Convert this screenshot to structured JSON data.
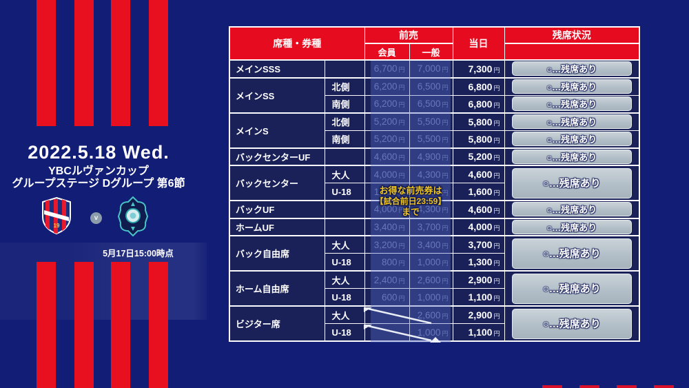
{
  "event": {
    "date": "2022.5.18 Wed.",
    "competition": "YBCルヴァンカップ",
    "stage": "グループステージ Dグループ 第6節",
    "versus_label": "v",
    "as_of": "5月17日15:00時点"
  },
  "icons": {
    "home_crest": "fc-tokyo-crest",
    "away_crest": "avispa-fukuoka-crest"
  },
  "promo": {
    "line1": "お得な前売券は",
    "line2": "【試合前日23:59】",
    "line3": "まで"
  },
  "table": {
    "headers": {
      "seat": "席種・券種",
      "advance": "前売",
      "member": "会員",
      "general": "一般",
      "sameday": "当日",
      "availability": "残席状況"
    },
    "yen_suffix": "円",
    "availability_label": "○…残席あり",
    "rows": [
      {
        "seat": "メインSSS",
        "sub": "",
        "rowspan": 1,
        "member": "6,700",
        "general": "7,000",
        "sameday": "7,300",
        "availability": "single",
        "group_start": true
      },
      {
        "seat": "メインSS",
        "sub": "北側",
        "rowspan": 2,
        "member": "6,200",
        "general": "6,500",
        "sameday": "6,800",
        "availability": "single",
        "group_start": true
      },
      {
        "seat": null,
        "sub": "南側",
        "member": "6,200",
        "general": "6,500",
        "sameday": "6,800",
        "availability": "single",
        "group_start": false
      },
      {
        "seat": "メインS",
        "sub": "北側",
        "rowspan": 2,
        "member": "5,200",
        "general": "5,500",
        "sameday": "5,800",
        "availability": "single",
        "group_start": true
      },
      {
        "seat": null,
        "sub": "南側",
        "member": "5,200",
        "general": "5,500",
        "sameday": "5,800",
        "availability": "single",
        "group_start": false
      },
      {
        "seat": "バックセンターUF",
        "sub": "",
        "rowspan": 1,
        "member": "4,600",
        "general": "4,900",
        "sameday": "5,200",
        "availability": "single",
        "group_start": true
      },
      {
        "seat": "バックセンター",
        "sub": "大人",
        "rowspan": 2,
        "member": "4,000",
        "general": "4,300",
        "sameday": "4,600",
        "availability": "span",
        "group_start": true
      },
      {
        "seat": null,
        "sub": "U-18",
        "member": "1,000",
        "general": "1,300",
        "sameday": "1,600",
        "availability": "none",
        "group_start": false
      },
      {
        "seat": "バックUF",
        "sub": "",
        "rowspan": 1,
        "member": "4,000",
        "general": "4,300",
        "sameday": "4,600",
        "availability": "single",
        "group_start": true
      },
      {
        "seat": "ホームUF",
        "sub": "",
        "rowspan": 1,
        "member": "3,400",
        "general": "3,700",
        "sameday": "4,000",
        "availability": "single",
        "group_start": true
      },
      {
        "seat": "バック自由席",
        "sub": "大人",
        "rowspan": 2,
        "member": "3,200",
        "general": "3,400",
        "sameday": "3,700",
        "availability": "span",
        "group_start": true
      },
      {
        "seat": null,
        "sub": "U-18",
        "member": "800",
        "general": "1,000",
        "sameday": "1,300",
        "availability": "none",
        "group_start": false
      },
      {
        "seat": "ホーム自由席",
        "sub": "大人",
        "rowspan": 2,
        "member": "2,400",
        "general": "2,600",
        "sameday": "2,900",
        "availability": "span",
        "group_start": true
      },
      {
        "seat": null,
        "sub": "U-18",
        "member": "600",
        "general": "1,000",
        "sameday": "1,100",
        "availability": "none",
        "group_start": false
      },
      {
        "seat": "ビジター席",
        "sub": "大人",
        "rowspan": 2,
        "member": null,
        "member_na": true,
        "general": "2,600",
        "sameday": "2,900",
        "availability": "span",
        "group_start": true
      },
      {
        "seat": null,
        "sub": "U-18",
        "member": null,
        "member_na": true,
        "general": "1,000",
        "sameday": "1,100",
        "availability": "none",
        "group_start": false
      }
    ]
  },
  "colors": {
    "accent_red": "#e8101e",
    "header_red": "#e60b1e",
    "background_navy": "#121d75",
    "cell_navy": "#1a2158",
    "promo_yellow": "#f0c41e",
    "button_gray": "#b3bfc8"
  }
}
